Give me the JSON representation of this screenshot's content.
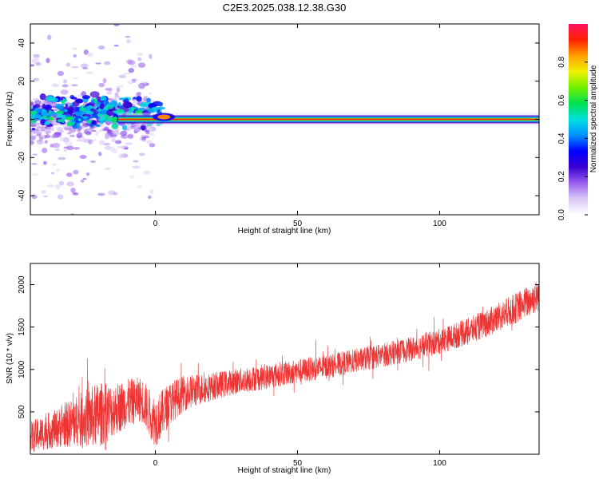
{
  "page": {
    "title": "C2E3.2025.038.12.38.G30"
  },
  "chart_data": [
    {
      "type": "heatmap",
      "xlabel": "Height of straight line (km)",
      "ylabel": "Frequency (Hz)",
      "xlim": [
        -44,
        135
      ],
      "ylim": [
        -50,
        50
      ],
      "x_ticks": [
        0,
        50,
        100
      ],
      "x_tick_labels": [
        "0",
        "50",
        "100"
      ],
      "y_ticks": [
        -40,
        -20,
        0,
        20,
        40
      ],
      "y_tick_labels": [
        "-40",
        "-20",
        "0",
        "20",
        "40"
      ],
      "grid": false,
      "colorbar": {
        "label": "Normalized spectral amplitude",
        "range": [
          0,
          1
        ],
        "ticks": [
          0.0,
          0.2,
          0.4,
          0.6,
          0.8
        ],
        "tick_labels": [
          "0.0",
          "0.2",
          "0.4",
          "0.6",
          "0.8"
        ],
        "colors": [
          "#ffffff",
          "#d9c8f5",
          "#9a60ee",
          "#3a00d0",
          "#0000ff",
          "#0090ff",
          "#00e0e0",
          "#00e050",
          "#70f000",
          "#f0f000",
          "#ffa000",
          "#ff2000",
          "#ff1060"
        ]
      },
      "features": {
        "main_line_frequency_hz": 0,
        "main_line_start_km": -13,
        "main_line_end_km": 135,
        "noisy_region_km": [
          -44,
          -12
        ],
        "bump_km": [
          2,
          4
        ]
      }
    },
    {
      "type": "line",
      "xlabel": "Height of straight line (km)",
      "ylabel": "SNR (10 * v/v)",
      "xlim": [
        -44,
        135
      ],
      "ylim": [
        0,
        2250
      ],
      "x_ticks": [
        0,
        50,
        100
      ],
      "x_tick_labels": [
        "0",
        "50",
        "100"
      ],
      "y_ticks": [
        500,
        1000,
        1500,
        2000
      ],
      "y_tick_labels": [
        "500",
        "1000",
        "1500",
        "2000"
      ],
      "grid": false,
      "series": [
        {
          "color": "#ee3333",
          "trend_x": [
            -44,
            -35,
            -25,
            -20,
            -15,
            -10,
            -5,
            0,
            5,
            10,
            20,
            30,
            40,
            50,
            60,
            70,
            80,
            90,
            100,
            110,
            120,
            130,
            135
          ],
          "trend_y": [
            200,
            300,
            420,
            460,
            520,
            600,
            650,
            380,
            600,
            720,
            800,
            870,
            920,
            980,
            1030,
            1100,
            1170,
            1240,
            1330,
            1450,
            1600,
            1780,
            1880
          ],
          "noise_amplitude": [
            250,
            300,
            450,
            520,
            420,
            380,
            350,
            400,
            340,
            280,
            220,
            200,
            200,
            190,
            190,
            190,
            190,
            190,
            200,
            210,
            230,
            250,
            260
          ]
        }
      ]
    }
  ]
}
